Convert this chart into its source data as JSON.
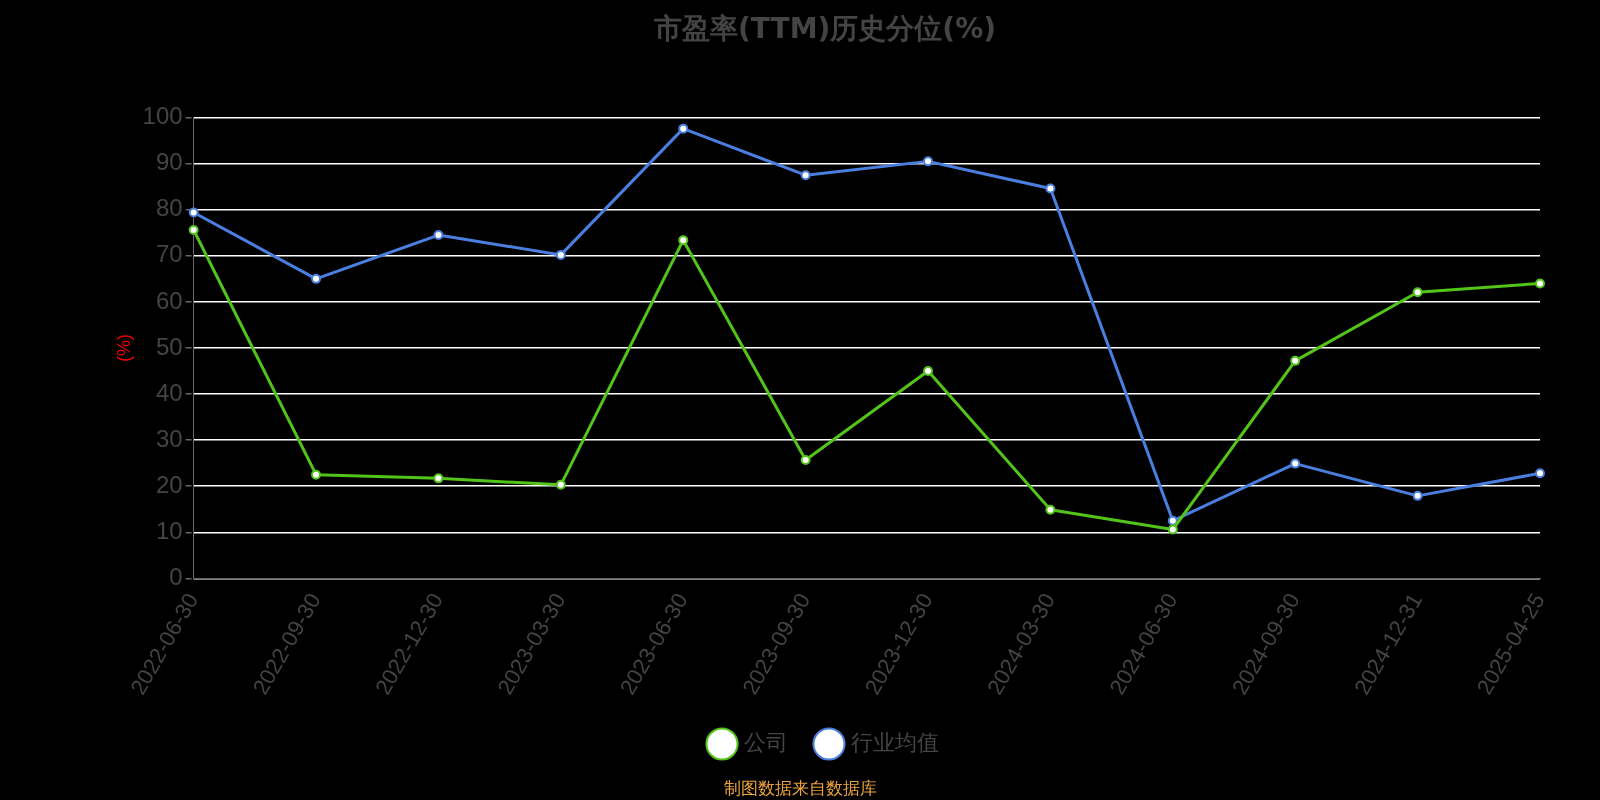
{
  "chart_data": {
    "type": "line",
    "title": "市盈率(TTM)历史分位(%)",
    "ylabel": "(%)",
    "categories": [
      "2022-06-30",
      "2022-09-30",
      "2022-12-30",
      "2023-03-30",
      "2023-06-30",
      "2023-09-30",
      "2023-12-30",
      "2024-03-30",
      "2024-06-30",
      "2024-09-30",
      "2024-12-31",
      "2025-04-25"
    ],
    "series": [
      {
        "name": "公司",
        "color": "#52c41a",
        "values": [
          75.6,
          22.5,
          21.7,
          20.3,
          73.4,
          25.7,
          45,
          14.9,
          10.6,
          47.2,
          62.1,
          64
        ]
      },
      {
        "name": "行业均值",
        "color": "#4a7fe0",
        "values": [
          79.4,
          65,
          74.5,
          70.2,
          97.6,
          87.5,
          90.5,
          84.6,
          12.5,
          24.9,
          17.9,
          22.8
        ]
      }
    ],
    "ylim": [
      0,
      100
    ],
    "yticks": [
      0,
      10,
      20,
      30,
      40,
      50,
      60,
      70,
      80,
      90,
      100
    ],
    "grid": "y",
    "legend": "bottom",
    "marker": "circle",
    "line_style": "solid",
    "annotations": [
      "制图数据来自数据库"
    ]
  }
}
